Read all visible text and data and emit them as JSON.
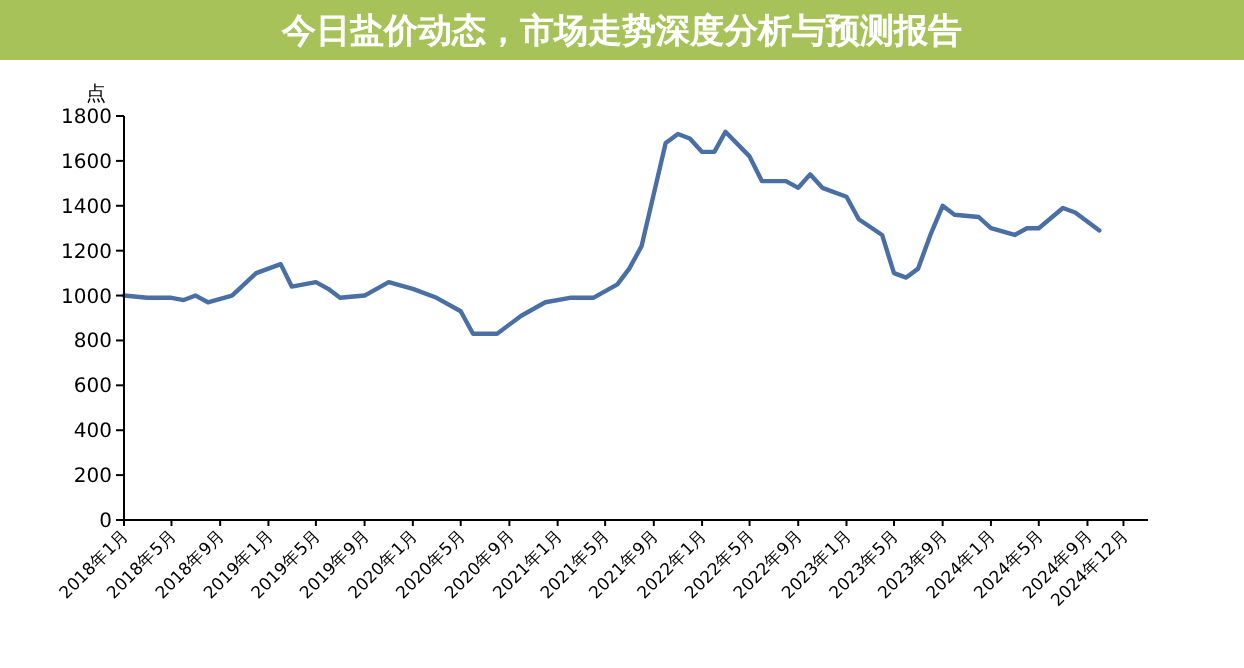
{
  "chart_data": {
    "type": "line",
    "title": "今日盐价动态，市场走势深度分析与预测报告",
    "ylabel": "点",
    "x": [
      "2018-01",
      "2018-03",
      "2018-05",
      "2018-06",
      "2018-07",
      "2018-08",
      "2018-10",
      "2018-12",
      "2019-01",
      "2019-02",
      "2019-03",
      "2019-05",
      "2019-06",
      "2019-07",
      "2019-09",
      "2019-11",
      "2020-01",
      "2020-03",
      "2020-05",
      "2020-06",
      "2020-08",
      "2020-10",
      "2020-12",
      "2021-02",
      "2021-04",
      "2021-06",
      "2021-07",
      "2021-08",
      "2021-10",
      "2021-11",
      "2021-12",
      "2022-01",
      "2022-02",
      "2022-03",
      "2022-05",
      "2022-06",
      "2022-08",
      "2022-09",
      "2022-10",
      "2022-11",
      "2023-01",
      "2023-02",
      "2023-04",
      "2023-05",
      "2023-06",
      "2023-07",
      "2023-08",
      "2023-09",
      "2023-10",
      "2023-12",
      "2024-01",
      "2024-03",
      "2024-04",
      "2024-05",
      "2024-07",
      "2024-08",
      "2024-10"
    ],
    "series": [
      {
        "color": "#4a6fa5",
        "values": [
          1000,
          990,
          990,
          980,
          1000,
          970,
          1000,
          1100,
          1120,
          1140,
          1040,
          1060,
          1030,
          990,
          1000,
          1060,
          1030,
          990,
          930,
          830,
          830,
          910,
          970,
          990,
          990,
          1050,
          1120,
          1220,
          1680,
          1720,
          1700,
          1640,
          1640,
          1730,
          1620,
          1510,
          1510,
          1480,
          1540,
          1480,
          1440,
          1340,
          1270,
          1100,
          1080,
          1120,
          1270,
          1400,
          1360,
          1350,
          1300,
          1270,
          1300,
          1300,
          1390,
          1370,
          1290
        ]
      }
    ],
    "xlim": [
      "2018-01",
      "2025-02"
    ],
    "xticks": [
      {
        "value": "2018-01",
        "label": "2018年1月"
      },
      {
        "value": "2018-05",
        "label": "2018年5月"
      },
      {
        "value": "2018-09",
        "label": "2018年9月"
      },
      {
        "value": "2019-01",
        "label": "2019年1月"
      },
      {
        "value": "2019-05",
        "label": "2019年5月"
      },
      {
        "value": "2019-09",
        "label": "2019年9月"
      },
      {
        "value": "2020-01",
        "label": "2020年1月"
      },
      {
        "value": "2020-05",
        "label": "2020年5月"
      },
      {
        "value": "2020-09",
        "label": "2020年9月"
      },
      {
        "value": "2021-01",
        "label": "2021年1月"
      },
      {
        "value": "2021-05",
        "label": "2021年5月"
      },
      {
        "value": "2021-09",
        "label": "2021年9月"
      },
      {
        "value": "2022-01",
        "label": "2022年1月"
      },
      {
        "value": "2022-05",
        "label": "2022年5月"
      },
      {
        "value": "2022-09",
        "label": "2022年9月"
      },
      {
        "value": "2023-01",
        "label": "2023年1月"
      },
      {
        "value": "2023-05",
        "label": "2023年5月"
      },
      {
        "value": "2023-09",
        "label": "2023年9月"
      },
      {
        "value": "2024-01",
        "label": "2024年1月"
      },
      {
        "value": "2024-05",
        "label": "2024年5月"
      },
      {
        "value": "2024-09",
        "label": "2024年9月"
      },
      {
        "value": "2024-12",
        "label": "2024年12月"
      }
    ],
    "ylim": [
      0,
      1800
    ],
    "yticks": [
      0,
      200,
      400,
      600,
      800,
      1000,
      1200,
      1400,
      1600,
      1800
    ],
    "grid": false,
    "marker": "none",
    "line_style": "solid"
  }
}
